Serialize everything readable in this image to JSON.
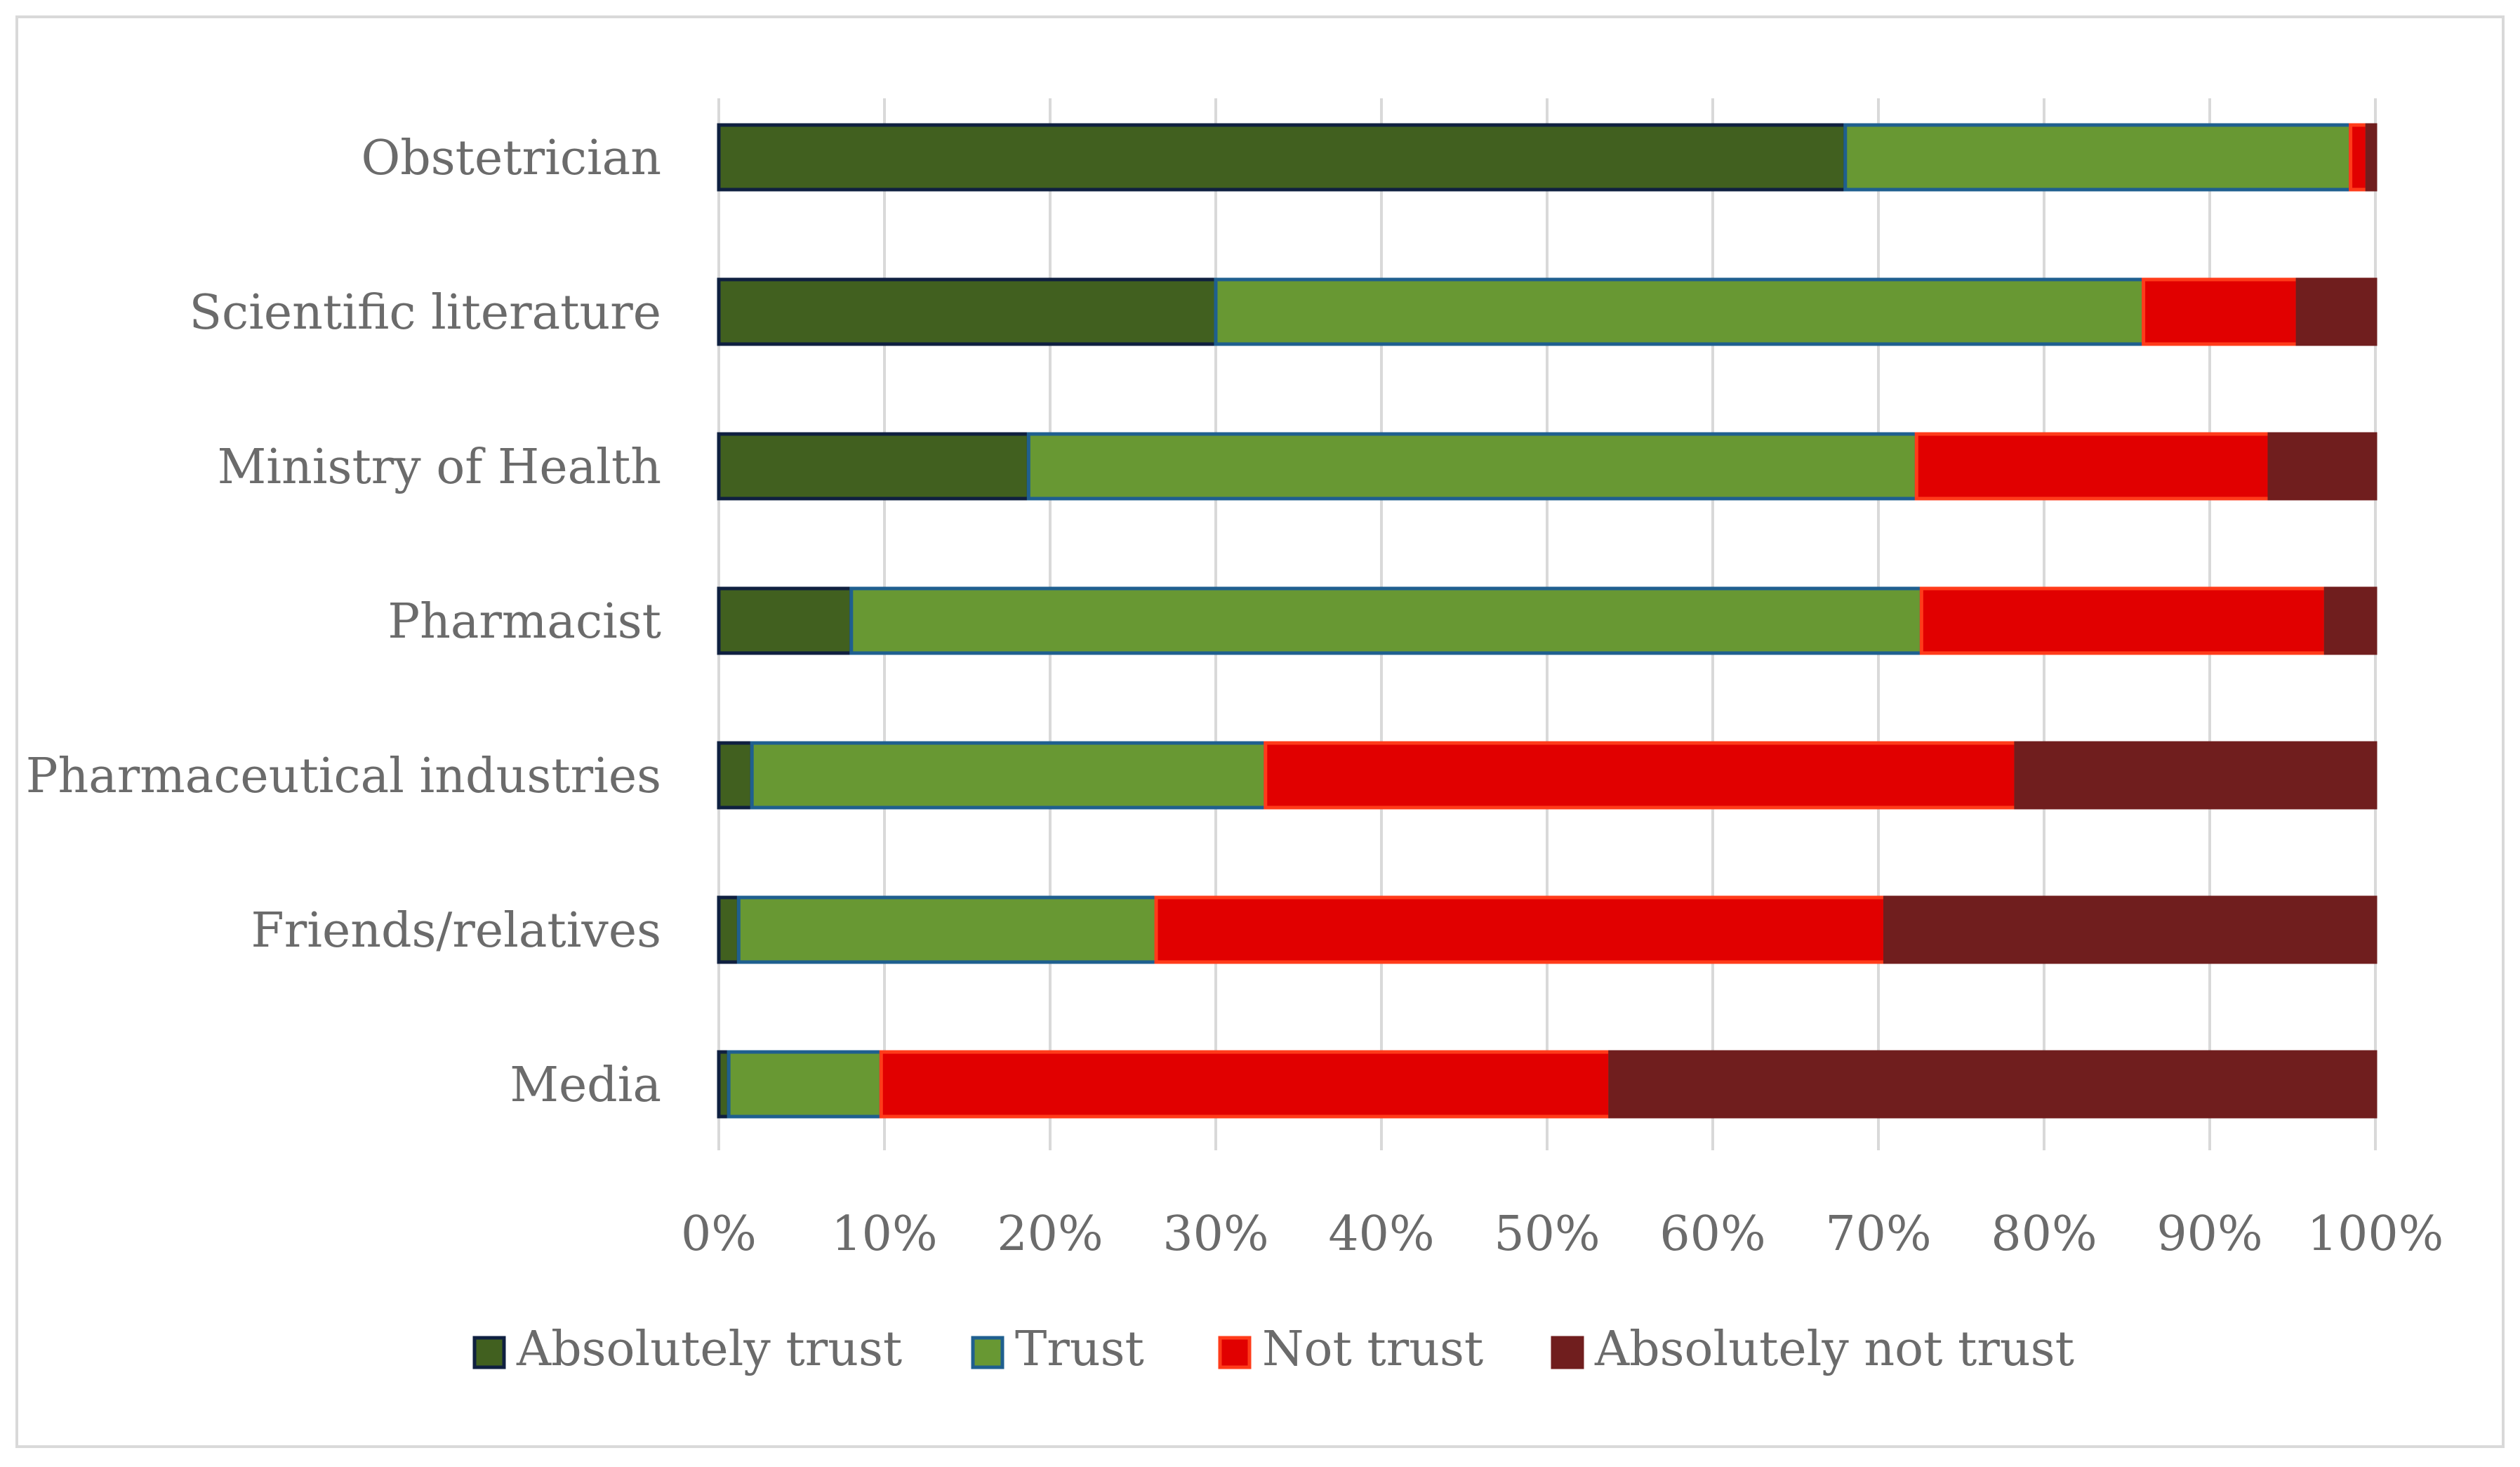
{
  "chart_data": {
    "type": "bar",
    "orientation": "horizontal",
    "stacked": "percent",
    "title": "",
    "xlabel": "",
    "ylabel": "",
    "categories": [
      "Obstetrician",
      "Scientific literature",
      "Ministry of Health",
      "Pharmacist",
      "Pharmaceutical industries",
      "Friends/relatives",
      "Media"
    ],
    "series": [
      {
        "name": "Absolutely trust",
        "color": "#41601F",
        "edge": "#0F2040",
        "values": [
          68,
          30,
          18.7,
          8,
          2,
          1.2,
          0.6
        ]
      },
      {
        "name": "Trust",
        "color": "#689833",
        "edge": "#1F5F8F",
        "values": [
          30.5,
          56,
          53.6,
          64.6,
          31,
          25.2,
          9.2
        ]
      },
      {
        "name": "Not trust",
        "color": "#E10000",
        "edge": "#FF3B1A",
        "values": [
          1,
          9.3,
          21.3,
          24.4,
          45.3,
          44,
          44
        ]
      },
      {
        "name": "Absolutely not trust",
        "color": "#701E1E",
        "edge": "#701E1E",
        "values": [
          0.5,
          4.7,
          6.4,
          3,
          21.7,
          29.6,
          46.2
        ]
      }
    ],
    "xlim": [
      0,
      100
    ],
    "xticks": [
      "0%",
      "10%",
      "20%",
      "30%",
      "40%",
      "50%",
      "60%",
      "70%",
      "80%",
      "90%",
      "100%"
    ],
    "grid": true,
    "legend_position": "bottom"
  }
}
